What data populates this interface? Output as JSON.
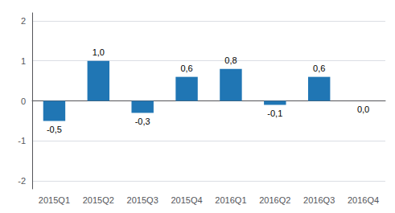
{
  "chart_data": {
    "type": "bar",
    "categories": [
      "2015Q1",
      "2015Q2",
      "2015Q3",
      "2015Q4",
      "2016Q1",
      "2016Q2",
      "2016Q3",
      "2016Q4"
    ],
    "values": [
      -0.5,
      1.0,
      -0.3,
      0.6,
      0.8,
      -0.1,
      0.6,
      0.0
    ],
    "value_labels": [
      "-0,5",
      "1,0",
      "-0,3",
      "0,6",
      "0,8",
      "-0,1",
      "0,6",
      "0,0"
    ],
    "data_labels": true,
    "color": "#2076b4",
    "ylim": [
      -2.2,
      2.2
    ],
    "yticks": [
      -2,
      -1,
      0,
      1,
      2
    ],
    "grid": true
  }
}
